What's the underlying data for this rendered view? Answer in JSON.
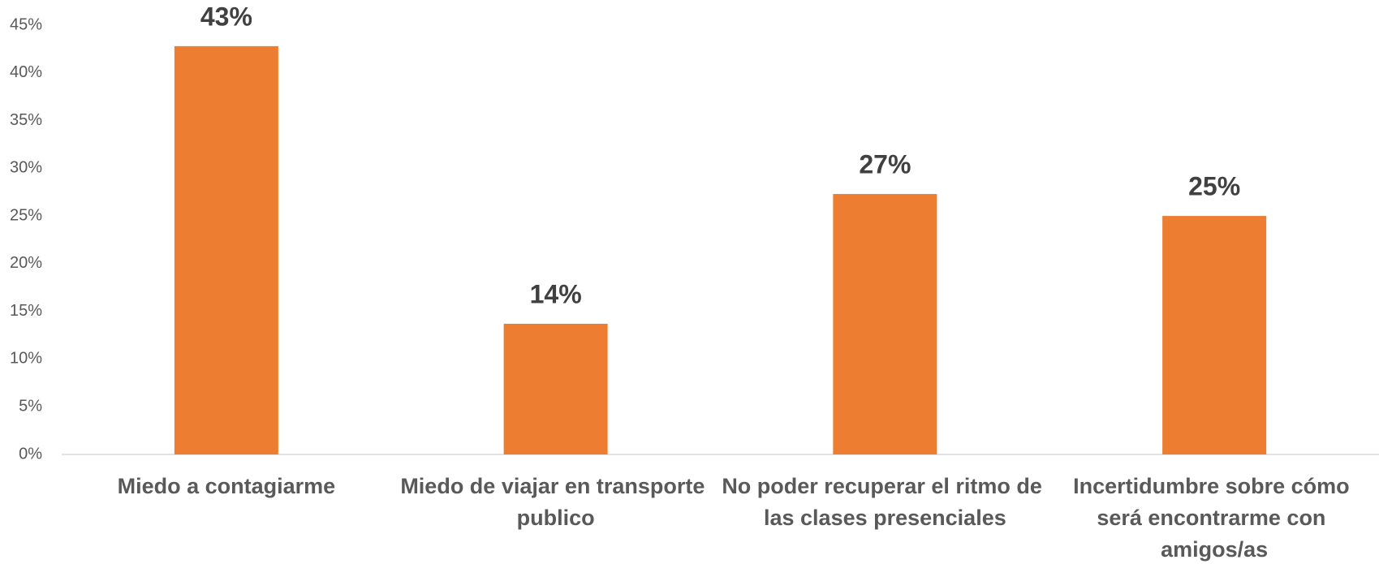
{
  "chart_data": {
    "type": "bar",
    "categories": [
      "Miedo a contagiarme",
      "Miedo de viajar en transporte publico",
      "No poder recuperar el ritmo de las clases presenciales",
      "Incertidumbre sobre cómo será encontrarme con amigos/as"
    ],
    "values": [
      42.8,
      13.7,
      27.3,
      25
    ],
    "value_labels": [
      "43%",
      "14%",
      "27%",
      "25%"
    ],
    "color": "#ed7d31",
    "ylim": [
      0,
      45
    ],
    "yticks": [
      {
        "value": 0,
        "label": "0%"
      },
      {
        "value": 5,
        "label": "5%"
      },
      {
        "value": 10,
        "label": "10%"
      },
      {
        "value": 15,
        "label": "15%"
      },
      {
        "value": 20,
        "label": "20%"
      },
      {
        "value": 25,
        "label": "25%"
      },
      {
        "value": 30,
        "label": "30%"
      },
      {
        "value": 35,
        "label": "35%"
      },
      {
        "value": 40,
        "label": "40%"
      },
      {
        "value": 45,
        "label": "45%"
      }
    ],
    "grid": false
  }
}
